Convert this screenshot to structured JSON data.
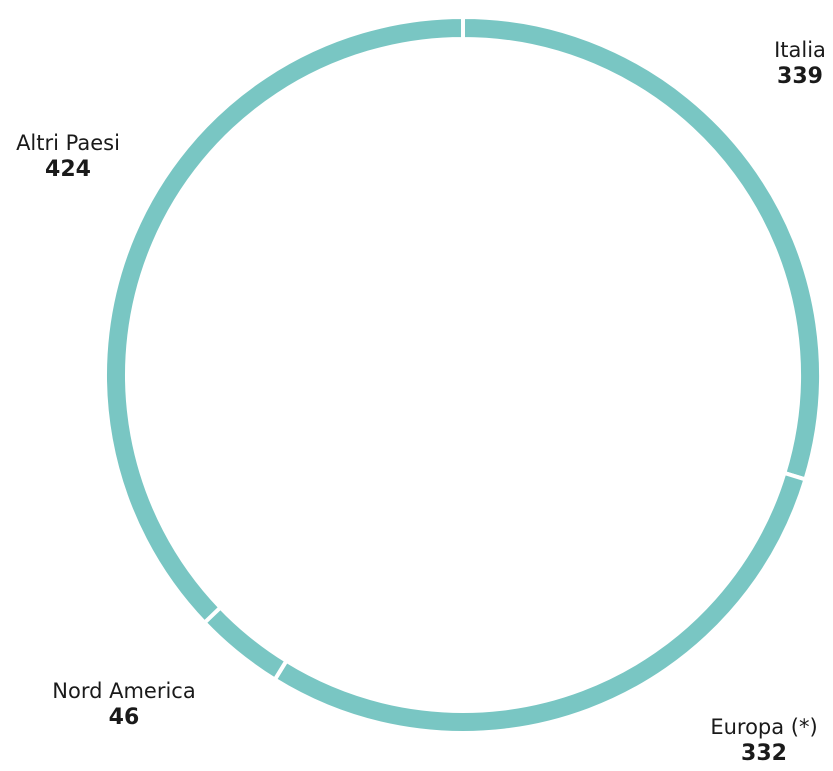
{
  "chart_data": {
    "type": "pie",
    "variant": "donut",
    "categories": [
      "Italia",
      "Europa (*)",
      "Nord America",
      "Altri Paesi"
    ],
    "values": [
      339,
      332,
      46,
      424
    ],
    "color": "#79c6c3",
    "separator_color": "#ffffff",
    "grid": false,
    "legend": "none"
  }
}
